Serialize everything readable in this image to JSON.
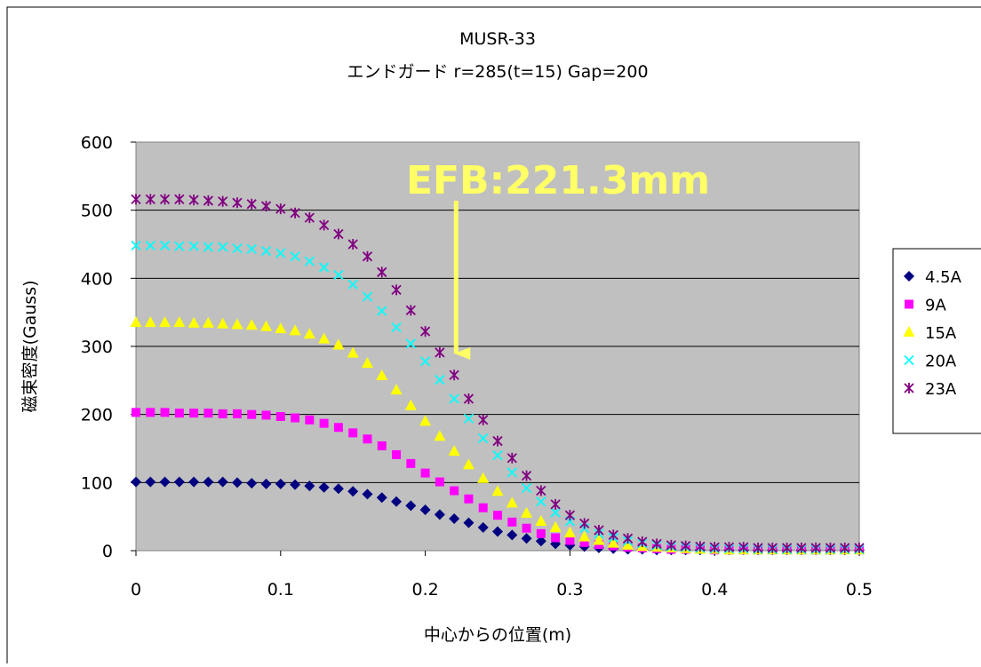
{
  "chart_data": {
    "type": "scatter",
    "title": "MUSR-33",
    "subtitle": "エンドガード r=285(t=15) Gap=200",
    "xlabel": "中心からの位置(m)",
    "ylabel": "磁束密度(Gauss)",
    "xlim": [
      0,
      0.5
    ],
    "ylim": [
      0,
      600
    ],
    "x_ticks": [
      "0",
      "0.1",
      "0.2",
      "0.3",
      "0.4",
      "0.5"
    ],
    "y_ticks": [
      "0",
      "100",
      "200",
      "300",
      "400",
      "500",
      "600"
    ],
    "grid": "horizontal",
    "legend_position": "right",
    "annotation": {
      "text": "EFB:221.3mm",
      "x": 0.2213,
      "color": "#ffff66"
    },
    "x": [
      0,
      0.01,
      0.02,
      0.03,
      0.04,
      0.05,
      0.06,
      0.07,
      0.08,
      0.09,
      0.1,
      0.11,
      0.12,
      0.13,
      0.14,
      0.15,
      0.16,
      0.17,
      0.18,
      0.19,
      0.2,
      0.21,
      0.22,
      0.23,
      0.24,
      0.25,
      0.26,
      0.27,
      0.28,
      0.29,
      0.3,
      0.31,
      0.32,
      0.33,
      0.34,
      0.35,
      0.36,
      0.37,
      0.38,
      0.39,
      0.4,
      0.41,
      0.42,
      0.43,
      0.44,
      0.45,
      0.46,
      0.47,
      0.48,
      0.49,
      0.5
    ],
    "series": [
      {
        "name": "4.5A",
        "marker": "diamond",
        "color": "#000080",
        "values": [
          101,
          101,
          101,
          101,
          101,
          101,
          101,
          100,
          99,
          98,
          98,
          97,
          95,
          93,
          91,
          87,
          83,
          78,
          72,
          66,
          60,
          53,
          47,
          41,
          34,
          28,
          23,
          18,
          14,
          10,
          8,
          6,
          4,
          3,
          2,
          2,
          1,
          1,
          1,
          1,
          1,
          1,
          1,
          1,
          1,
          1,
          1,
          1,
          1,
          1,
          1
        ]
      },
      {
        "name": "9A",
        "marker": "square",
        "color": "#ff00ff",
        "values": [
          203,
          203,
          203,
          202,
          202,
          202,
          201,
          201,
          200,
          199,
          197,
          195,
          192,
          187,
          181,
          173,
          164,
          154,
          141,
          128,
          114,
          101,
          88,
          76,
          63,
          52,
          42,
          33,
          25,
          19,
          15,
          12,
          9,
          7,
          5,
          4,
          3,
          2,
          2,
          2,
          1,
          1,
          1,
          1,
          1,
          1,
          1,
          1,
          1,
          1,
          1
        ]
      },
      {
        "name": "15A",
        "marker": "triangle",
        "color": "#ffff00",
        "values": [
          335,
          335,
          335,
          335,
          334,
          334,
          333,
          332,
          331,
          329,
          326,
          323,
          318,
          311,
          302,
          290,
          275,
          257,
          236,
          213,
          190,
          168,
          146,
          126,
          106,
          87,
          70,
          55,
          43,
          34,
          26,
          20,
          15,
          11,
          8,
          6,
          5,
          4,
          3,
          2,
          2,
          1,
          1,
          1,
          1,
          1,
          1,
          1,
          1,
          1,
          1
        ]
      },
      {
        "name": "20A",
        "marker": "x",
        "color": "#00ffff",
        "values": [
          448,
          448,
          448,
          447,
          447,
          446,
          446,
          444,
          443,
          440,
          437,
          432,
          425,
          416,
          405,
          391,
          373,
          352,
          328,
          304,
          278,
          251,
          223,
          194,
          165,
          140,
          115,
          92,
          72,
          56,
          43,
          33,
          25,
          19,
          14,
          11,
          8,
          6,
          5,
          4,
          3,
          3,
          3,
          2,
          2,
          2,
          2,
          2,
          2,
          2,
          2
        ]
      },
      {
        "name": "23A",
        "marker": "star",
        "color": "#800080",
        "values": [
          516,
          516,
          516,
          516,
          515,
          514,
          513,
          511,
          509,
          506,
          502,
          496,
          489,
          478,
          465,
          450,
          432,
          409,
          383,
          353,
          322,
          291,
          258,
          223,
          192,
          161,
          136,
          110,
          88,
          68,
          52,
          40,
          30,
          23,
          18,
          13,
          10,
          8,
          7,
          6,
          5,
          5,
          5,
          4,
          4,
          4,
          4,
          4,
          4,
          4,
          4
        ]
      }
    ]
  }
}
